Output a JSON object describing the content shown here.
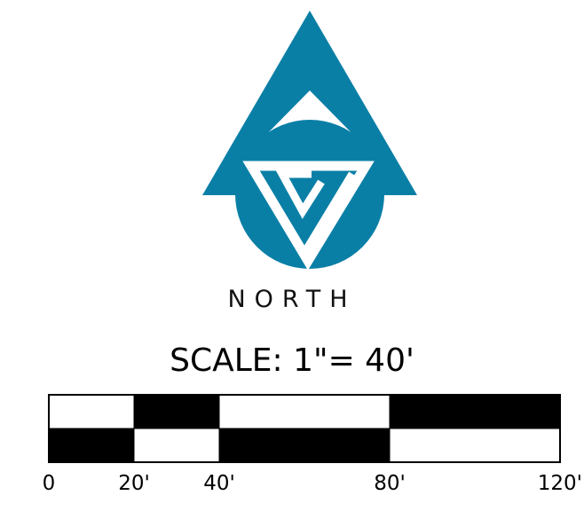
{
  "north_arrow": {
    "label": "NORTH",
    "accent_color": "#0a7fa6",
    "icon": "north-arrow-icon"
  },
  "scale": {
    "label": "SCALE: 1\"=  40'",
    "tick_labels": [
      "0",
      "20'",
      "40'",
      "80'",
      "120'"
    ],
    "tick_values_ft": [
      0,
      20,
      40,
      80,
      120
    ],
    "top_row_fill": [
      "white",
      "black",
      "white",
      "black"
    ],
    "bottom_row_fill": [
      "black",
      "white",
      "black",
      "white"
    ]
  }
}
